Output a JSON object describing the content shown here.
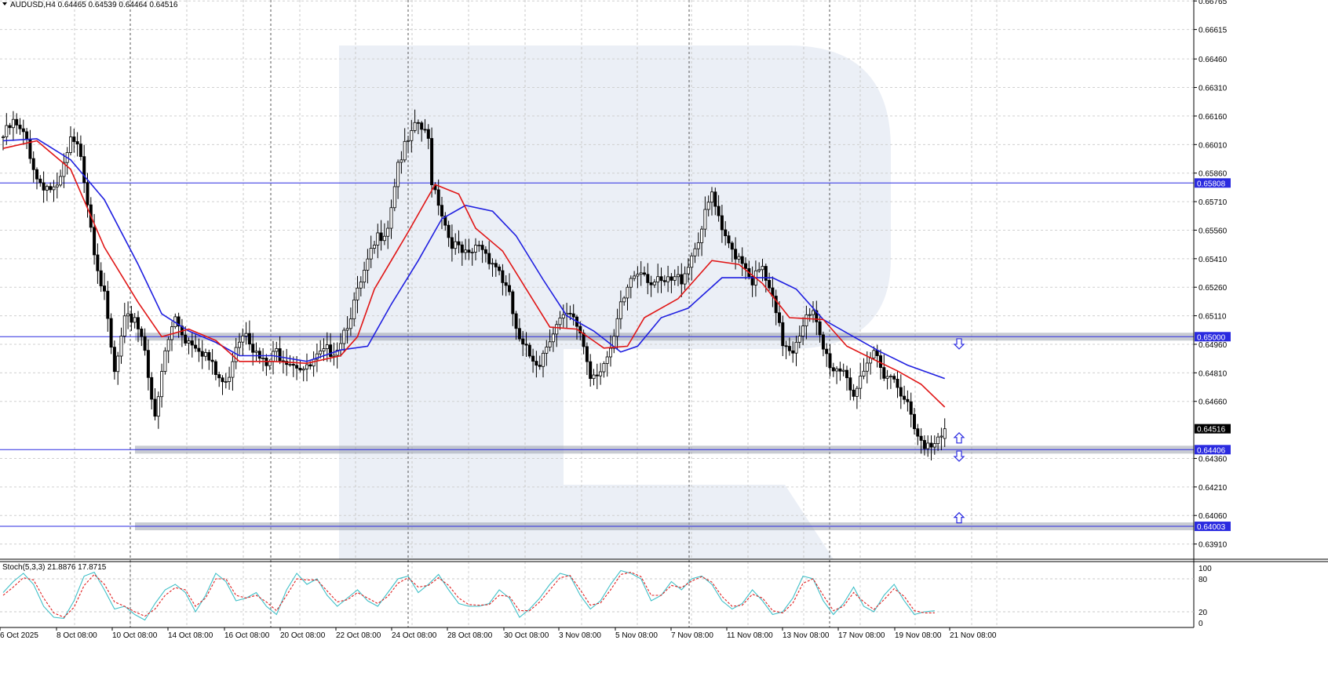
{
  "header": {
    "symbol_line": "AUDUSD,H4  0.64465 0.64539 0.64464 0.64516",
    "stoch_line": "Stoch(5,3,3) 21.8876 17.8715"
  },
  "chart_data": {
    "type": "candlestick",
    "symbol": "AUDUSD",
    "timeframe": "H4",
    "ohlc_last": {
      "open": 0.64465,
      "high": 0.64539,
      "low": 0.64464,
      "close": 0.64516
    },
    "price_axis": {
      "ylim": [
        0.6383,
        0.6677
      ],
      "ticks": [
        "0.66765",
        "0.66615",
        "0.66460",
        "0.66310",
        "0.66160",
        "0.66010",
        "0.65860",
        "0.65710",
        "0.65560",
        "0.65410",
        "0.65260",
        "0.65110",
        "0.64960",
        "0.64810",
        "0.64660",
        "0.64360",
        "0.64210",
        "0.64060",
        "0.63910"
      ],
      "current_price": "0.64516"
    },
    "time_axis": {
      "labels": [
        "6 Oct 2025",
        "8 Oct 08:00",
        "10 Oct 08:00",
        "14 Oct 08:00",
        "16 Oct 08:00",
        "20 Oct 08:00",
        "22 Oct 08:00",
        "24 Oct 08:00",
        "28 Oct 08:00",
        "30 Oct 08:00",
        "3 Nov 08:00",
        "5 Nov 08:00",
        "7 Nov 08:00",
        "11 Nov 08:00",
        "13 Nov 08:00",
        "17 Nov 08:00",
        "19 Nov 08:00",
        "21 Nov 08:00"
      ]
    },
    "levels": [
      {
        "price": 0.65808,
        "label": "0.65808"
      },
      {
        "price": 0.65,
        "label": "0.65000"
      },
      {
        "price": 0.64406,
        "label": "0.64406"
      },
      {
        "price": 0.64003,
        "label": "0.64003"
      }
    ],
    "zones": [
      0.65,
      0.64406,
      0.64003
    ],
    "arrows": [
      {
        "direction": "down",
        "price": 0.6496
      },
      {
        "direction": "up",
        "price": 0.6447
      },
      {
        "direction": "down",
        "price": 0.6437
      },
      {
        "direction": "up",
        "price": 0.6405
      }
    ],
    "close_path": [
      [
        0,
        0.6605
      ],
      [
        3,
        0.6612
      ],
      [
        7,
        0.6603
      ],
      [
        10,
        0.6583
      ],
      [
        13,
        0.6579
      ],
      [
        16,
        0.6576
      ],
      [
        20,
        0.6602
      ],
      [
        23,
        0.6597
      ],
      [
        27,
        0.6547
      ],
      [
        30,
        0.652
      ],
      [
        33,
        0.648
      ],
      [
        36,
        0.6507
      ],
      [
        39,
        0.6511
      ],
      [
        42,
        0.6495
      ],
      [
        45,
        0.6455
      ],
      [
        48,
        0.6492
      ],
      [
        51,
        0.651
      ],
      [
        54,
        0.6499
      ],
      [
        57,
        0.6497
      ],
      [
        60,
        0.6491
      ],
      [
        63,
        0.648
      ],
      [
        66,
        0.6474
      ],
      [
        69,
        0.6497
      ],
      [
        72,
        0.6505
      ],
      [
        75,
        0.649
      ],
      [
        78,
        0.6484
      ],
      [
        81,
        0.6492
      ],
      [
        84,
        0.6489
      ],
      [
        87,
        0.6486
      ],
      [
        90,
        0.6482
      ],
      [
        93,
        0.6488
      ],
      [
        96,
        0.6492
      ],
      [
        99,
        0.6495
      ],
      [
        102,
        0.6508
      ],
      [
        105,
        0.6522
      ],
      [
        108,
        0.6538
      ],
      [
        111,
        0.6552
      ],
      [
        114,
        0.6559
      ],
      [
        117,
        0.6592
      ],
      [
        120,
        0.6602
      ],
      [
        123,
        0.6612
      ],
      [
        126,
        0.6603
      ],
      [
        127,
        0.6583
      ],
      [
        129,
        0.6572
      ],
      [
        132,
        0.6553
      ],
      [
        135,
        0.6545
      ],
      [
        138,
        0.6541
      ],
      [
        141,
        0.6549
      ],
      [
        144,
        0.6542
      ],
      [
        147,
        0.6535
      ],
      [
        150,
        0.652
      ],
      [
        153,
        0.6496
      ],
      [
        156,
        0.649
      ],
      [
        159,
        0.6487
      ],
      [
        162,
        0.6501
      ],
      [
        165,
        0.6508
      ],
      [
        168,
        0.651
      ],
      [
        171,
        0.6503
      ],
      [
        174,
        0.648
      ],
      [
        177,
        0.6484
      ],
      [
        180,
        0.649
      ],
      [
        183,
        0.6515
      ],
      [
        186,
        0.6531
      ],
      [
        189,
        0.6537
      ],
      [
        192,
        0.6529
      ],
      [
        195,
        0.6527
      ],
      [
        198,
        0.6529
      ],
      [
        201,
        0.6531
      ],
      [
        204,
        0.6543
      ],
      [
        207,
        0.6557
      ],
      [
        210,
        0.6575
      ],
      [
        213,
        0.6553
      ],
      [
        216,
        0.6546
      ],
      [
        219,
        0.6541
      ],
      [
        222,
        0.653
      ],
      [
        225,
        0.6535
      ],
      [
        228,
        0.6518
      ],
      [
        231,
        0.6497
      ],
      [
        234,
        0.6494
      ],
      [
        237,
        0.6508
      ],
      [
        240,
        0.6511
      ],
      [
        243,
        0.6493
      ],
      [
        246,
        0.6483
      ],
      [
        249,
        0.6484
      ],
      [
        252,
        0.647
      ],
      [
        255,
        0.6478
      ],
      [
        258,
        0.6492
      ],
      [
        261,
        0.6482
      ],
      [
        264,
        0.6478
      ],
      [
        267,
        0.647
      ],
      [
        270,
        0.645
      ],
      [
        273,
        0.644
      ],
      [
        276,
        0.6446
      ],
      [
        279,
        0.6452
      ]
    ],
    "sma_red": [
      [
        0,
        0.6599
      ],
      [
        10,
        0.6603
      ],
      [
        20,
        0.6588
      ],
      [
        30,
        0.6547
      ],
      [
        40,
        0.6518
      ],
      [
        47,
        0.65
      ],
      [
        55,
        0.6504
      ],
      [
        63,
        0.6498
      ],
      [
        70,
        0.6487
      ],
      [
        80,
        0.6487
      ],
      [
        90,
        0.6486
      ],
      [
        100,
        0.649
      ],
      [
        105,
        0.65
      ],
      [
        110,
        0.6525
      ],
      [
        120,
        0.6555
      ],
      [
        128,
        0.658
      ],
      [
        135,
        0.6575
      ],
      [
        140,
        0.6557
      ],
      [
        148,
        0.6545
      ],
      [
        155,
        0.6525
      ],
      [
        162,
        0.6505
      ],
      [
        170,
        0.6504
      ],
      [
        178,
        0.6494
      ],
      [
        185,
        0.6495
      ],
      [
        190,
        0.651
      ],
      [
        200,
        0.652
      ],
      [
        210,
        0.654
      ],
      [
        218,
        0.6538
      ],
      [
        225,
        0.6528
      ],
      [
        233,
        0.651
      ],
      [
        243,
        0.6509
      ],
      [
        250,
        0.6495
      ],
      [
        258,
        0.6488
      ],
      [
        265,
        0.6482
      ],
      [
        272,
        0.6475
      ],
      [
        279,
        0.6463
      ]
    ],
    "sma_blue": [
      [
        0,
        0.6603
      ],
      [
        10,
        0.6604
      ],
      [
        20,
        0.6593
      ],
      [
        30,
        0.6572
      ],
      [
        40,
        0.6538
      ],
      [
        47,
        0.6512
      ],
      [
        55,
        0.6503
      ],
      [
        63,
        0.6497
      ],
      [
        70,
        0.649
      ],
      [
        80,
        0.649
      ],
      [
        90,
        0.6487
      ],
      [
        100,
        0.6493
      ],
      [
        108,
        0.6495
      ],
      [
        115,
        0.6517
      ],
      [
        123,
        0.654
      ],
      [
        130,
        0.6562
      ],
      [
        137,
        0.6569
      ],
      [
        145,
        0.6566
      ],
      [
        152,
        0.6553
      ],
      [
        160,
        0.653
      ],
      [
        167,
        0.6511
      ],
      [
        175,
        0.6503
      ],
      [
        183,
        0.6492
      ],
      [
        188,
        0.6495
      ],
      [
        195,
        0.651
      ],
      [
        203,
        0.6515
      ],
      [
        213,
        0.6531
      ],
      [
        220,
        0.6531
      ],
      [
        228,
        0.6531
      ],
      [
        235,
        0.6525
      ],
      [
        243,
        0.6509
      ],
      [
        252,
        0.65
      ],
      [
        260,
        0.6492
      ],
      [
        268,
        0.6485
      ],
      [
        279,
        0.6478
      ]
    ],
    "stochastic": {
      "name": "Stoch(5,3,3)",
      "main": "21.8876",
      "signal": "17.8715",
      "ylim": [
        0,
        100
      ],
      "ticks": [
        "100",
        "80",
        "20",
        "0"
      ],
      "k_path": [
        [
          0,
          55
        ],
        [
          3,
          75
        ],
        [
          6,
          90
        ],
        [
          9,
          70
        ],
        [
          12,
          30
        ],
        [
          15,
          10
        ],
        [
          18,
          8
        ],
        [
          21,
          40
        ],
        [
          24,
          85
        ],
        [
          27,
          92
        ],
        [
          30,
          60
        ],
        [
          33,
          25
        ],
        [
          36,
          30
        ],
        [
          39,
          15
        ],
        [
          42,
          5
        ],
        [
          45,
          35
        ],
        [
          48,
          60
        ],
        [
          51,
          70
        ],
        [
          54,
          55
        ],
        [
          57,
          20
        ],
        [
          60,
          50
        ],
        [
          63,
          90
        ],
        [
          66,
          75
        ],
        [
          69,
          40
        ],
        [
          72,
          45
        ],
        [
          75,
          55
        ],
        [
          78,
          30
        ],
        [
          81,
          15
        ],
        [
          84,
          60
        ],
        [
          87,
          90
        ],
        [
          90,
          70
        ],
        [
          93,
          80
        ],
        [
          96,
          50
        ],
        [
          99,
          30
        ],
        [
          102,
          45
        ],
        [
          105,
          60
        ],
        [
          108,
          40
        ],
        [
          111,
          30
        ],
        [
          114,
          55
        ],
        [
          117,
          80
        ],
        [
          120,
          85
        ],
        [
          123,
          55
        ],
        [
          126,
          70
        ],
        [
          129,
          88
        ],
        [
          132,
          60
        ],
        [
          135,
          35
        ],
        [
          138,
          30
        ],
        [
          141,
          30
        ],
        [
          144,
          35
        ],
        [
          147,
          60
        ],
        [
          150,
          45
        ],
        [
          153,
          10
        ],
        [
          156,
          25
        ],
        [
          159,
          45
        ],
        [
          162,
          70
        ],
        [
          165,
          90
        ],
        [
          168,
          85
        ],
        [
          171,
          50
        ],
        [
          174,
          25
        ],
        [
          177,
          40
        ],
        [
          180,
          70
        ],
        [
          183,
          95
        ],
        [
          186,
          90
        ],
        [
          189,
          80
        ],
        [
          192,
          40
        ],
        [
          195,
          50
        ],
        [
          198,
          75
        ],
        [
          201,
          60
        ],
        [
          204,
          80
        ],
        [
          207,
          85
        ],
        [
          210,
          70
        ],
        [
          213,
          40
        ],
        [
          216,
          25
        ],
        [
          219,
          35
        ],
        [
          222,
          60
        ],
        [
          225,
          40
        ],
        [
          228,
          15
        ],
        [
          231,
          20
        ],
        [
          234,
          45
        ],
        [
          237,
          85
        ],
        [
          240,
          80
        ],
        [
          243,
          40
        ],
        [
          246,
          15
        ],
        [
          249,
          35
        ],
        [
          252,
          65
        ],
        [
          255,
          30
        ],
        [
          258,
          20
        ],
        [
          261,
          50
        ],
        [
          264,
          70
        ],
        [
          267,
          40
        ],
        [
          270,
          15
        ],
        [
          273,
          20
        ],
        [
          276,
          21.9
        ]
      ],
      "d_path": [
        [
          0,
          50
        ],
        [
          3,
          65
        ],
        [
          6,
          82
        ],
        [
          9,
          78
        ],
        [
          12,
          45
        ],
        [
          15,
          18
        ],
        [
          18,
          10
        ],
        [
          21,
          28
        ],
        [
          24,
          68
        ],
        [
          27,
          88
        ],
        [
          30,
          70
        ],
        [
          33,
          38
        ],
        [
          36,
          30
        ],
        [
          39,
          20
        ],
        [
          42,
          12
        ],
        [
          45,
          25
        ],
        [
          48,
          50
        ],
        [
          51,
          64
        ],
        [
          54,
          60
        ],
        [
          57,
          30
        ],
        [
          60,
          45
        ],
        [
          63,
          80
        ],
        [
          66,
          80
        ],
        [
          69,
          50
        ],
        [
          72,
          45
        ],
        [
          75,
          50
        ],
        [
          78,
          38
        ],
        [
          81,
          22
        ],
        [
          84,
          50
        ],
        [
          87,
          80
        ],
        [
          90,
          78
        ],
        [
          93,
          78
        ],
        [
          96,
          58
        ],
        [
          99,
          38
        ],
        [
          102,
          42
        ],
        [
          105,
          55
        ],
        [
          108,
          45
        ],
        [
          111,
          35
        ],
        [
          114,
          48
        ],
        [
          117,
          72
        ],
        [
          120,
          82
        ],
        [
          123,
          65
        ],
        [
          126,
          68
        ],
        [
          129,
          82
        ],
        [
          132,
          68
        ],
        [
          135,
          45
        ],
        [
          138,
          33
        ],
        [
          141,
          32
        ],
        [
          144,
          33
        ],
        [
          147,
          50
        ],
        [
          150,
          48
        ],
        [
          153,
          22
        ],
        [
          156,
          22
        ],
        [
          159,
          38
        ],
        [
          162,
          60
        ],
        [
          165,
          82
        ],
        [
          168,
          86
        ],
        [
          171,
          60
        ],
        [
          174,
          32
        ],
        [
          177,
          36
        ],
        [
          180,
          60
        ],
        [
          183,
          88
        ],
        [
          186,
          92
        ],
        [
          189,
          84
        ],
        [
          192,
          50
        ],
        [
          195,
          50
        ],
        [
          198,
          68
        ],
        [
          201,
          64
        ],
        [
          204,
          76
        ],
        [
          207,
          84
        ],
        [
          210,
          74
        ],
        [
          213,
          48
        ],
        [
          216,
          30
        ],
        [
          219,
          32
        ],
        [
          222,
          52
        ],
        [
          225,
          45
        ],
        [
          228,
          22
        ],
        [
          231,
          18
        ],
        [
          234,
          36
        ],
        [
          237,
          72
        ],
        [
          240,
          80
        ],
        [
          243,
          50
        ],
        [
          246,
          22
        ],
        [
          249,
          30
        ],
        [
          252,
          55
        ],
        [
          255,
          38
        ],
        [
          258,
          24
        ],
        [
          261,
          42
        ],
        [
          264,
          62
        ],
        [
          267,
          48
        ],
        [
          270,
          22
        ],
        [
          273,
          18
        ],
        [
          276,
          17.9
        ]
      ]
    }
  }
}
